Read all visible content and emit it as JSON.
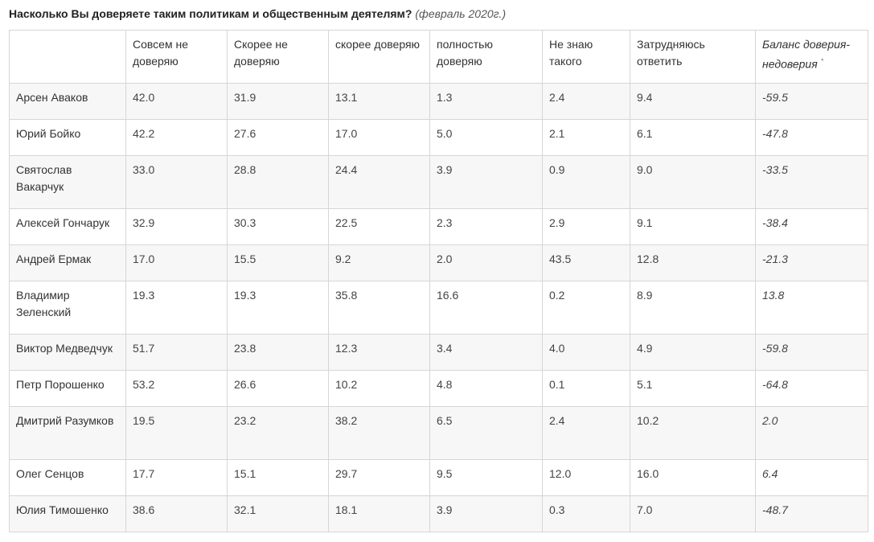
{
  "heading": {
    "title": "Насколько Вы доверяете таким политикам и общественным деятелям?",
    "date_note": "(февраль 2020г.)"
  },
  "table": {
    "columns": [
      "",
      "Совсем не доверяю",
      "Скорее не доверяю",
      "скорее доверяю",
      "полностью доверяю",
      "Не знаю такого",
      "Затрудняюсь ответить",
      "Баланс доверия-недоверия"
    ],
    "balance_footnote_mark": "*",
    "rows": [
      {
        "name": "Арсен Аваков",
        "values": [
          "42.0",
          "31.9",
          "13.1",
          "1.3",
          "2.4",
          "9.4"
        ],
        "balance": "-59.5"
      },
      {
        "name": "Юрий Бойко",
        "values": [
          "42.2",
          "27.6",
          "17.0",
          "5.0",
          "2.1",
          "6.1"
        ],
        "balance": "-47.8"
      },
      {
        "name": "Святослав Вакарчук",
        "values": [
          "33.0",
          "28.8",
          "24.4",
          "3.9",
          "0.9",
          "9.0"
        ],
        "balance": "-33.5"
      },
      {
        "name": "Алексей Гончарук",
        "values": [
          "32.9",
          "30.3",
          "22.5",
          "2.3",
          "2.9",
          "9.1"
        ],
        "balance": "-38.4"
      },
      {
        "name": "Андрей Ермак",
        "values": [
          "17.0",
          "15.5",
          "9.2",
          "2.0",
          "43.5",
          "12.8"
        ],
        "balance": "-21.3"
      },
      {
        "name": "Владимир Зеленский",
        "values": [
          "19.3",
          "19.3",
          "35.8",
          "16.6",
          "0.2",
          "8.9"
        ],
        "balance": "13.8"
      },
      {
        "name": "Виктор Медведчук",
        "values": [
          "51.7",
          "23.8",
          "12.3",
          "3.4",
          "4.0",
          "4.9"
        ],
        "balance": "-59.8"
      },
      {
        "name": "Петр Порошенко",
        "values": [
          "53.2",
          "26.6",
          "10.2",
          "4.8",
          "0.1",
          "5.1"
        ],
        "balance": "-64.8"
      },
      {
        "name": "Дмитрий Разумков",
        "values": [
          "19.5",
          "23.2",
          "38.2",
          "6.5",
          "2.4",
          "10.2"
        ],
        "balance": "2.0"
      },
      {
        "name": "Олег Сенцов",
        "values": [
          "17.7",
          "15.1",
          "29.7",
          "9.5",
          "12.0",
          "16.0"
        ],
        "balance": "6.4"
      },
      {
        "name": "Юлия Тимошенко",
        "values": [
          "38.6",
          "32.1",
          "18.1",
          "3.9",
          "0.3",
          "7.0"
        ],
        "balance": "-48.7"
      }
    ]
  }
}
